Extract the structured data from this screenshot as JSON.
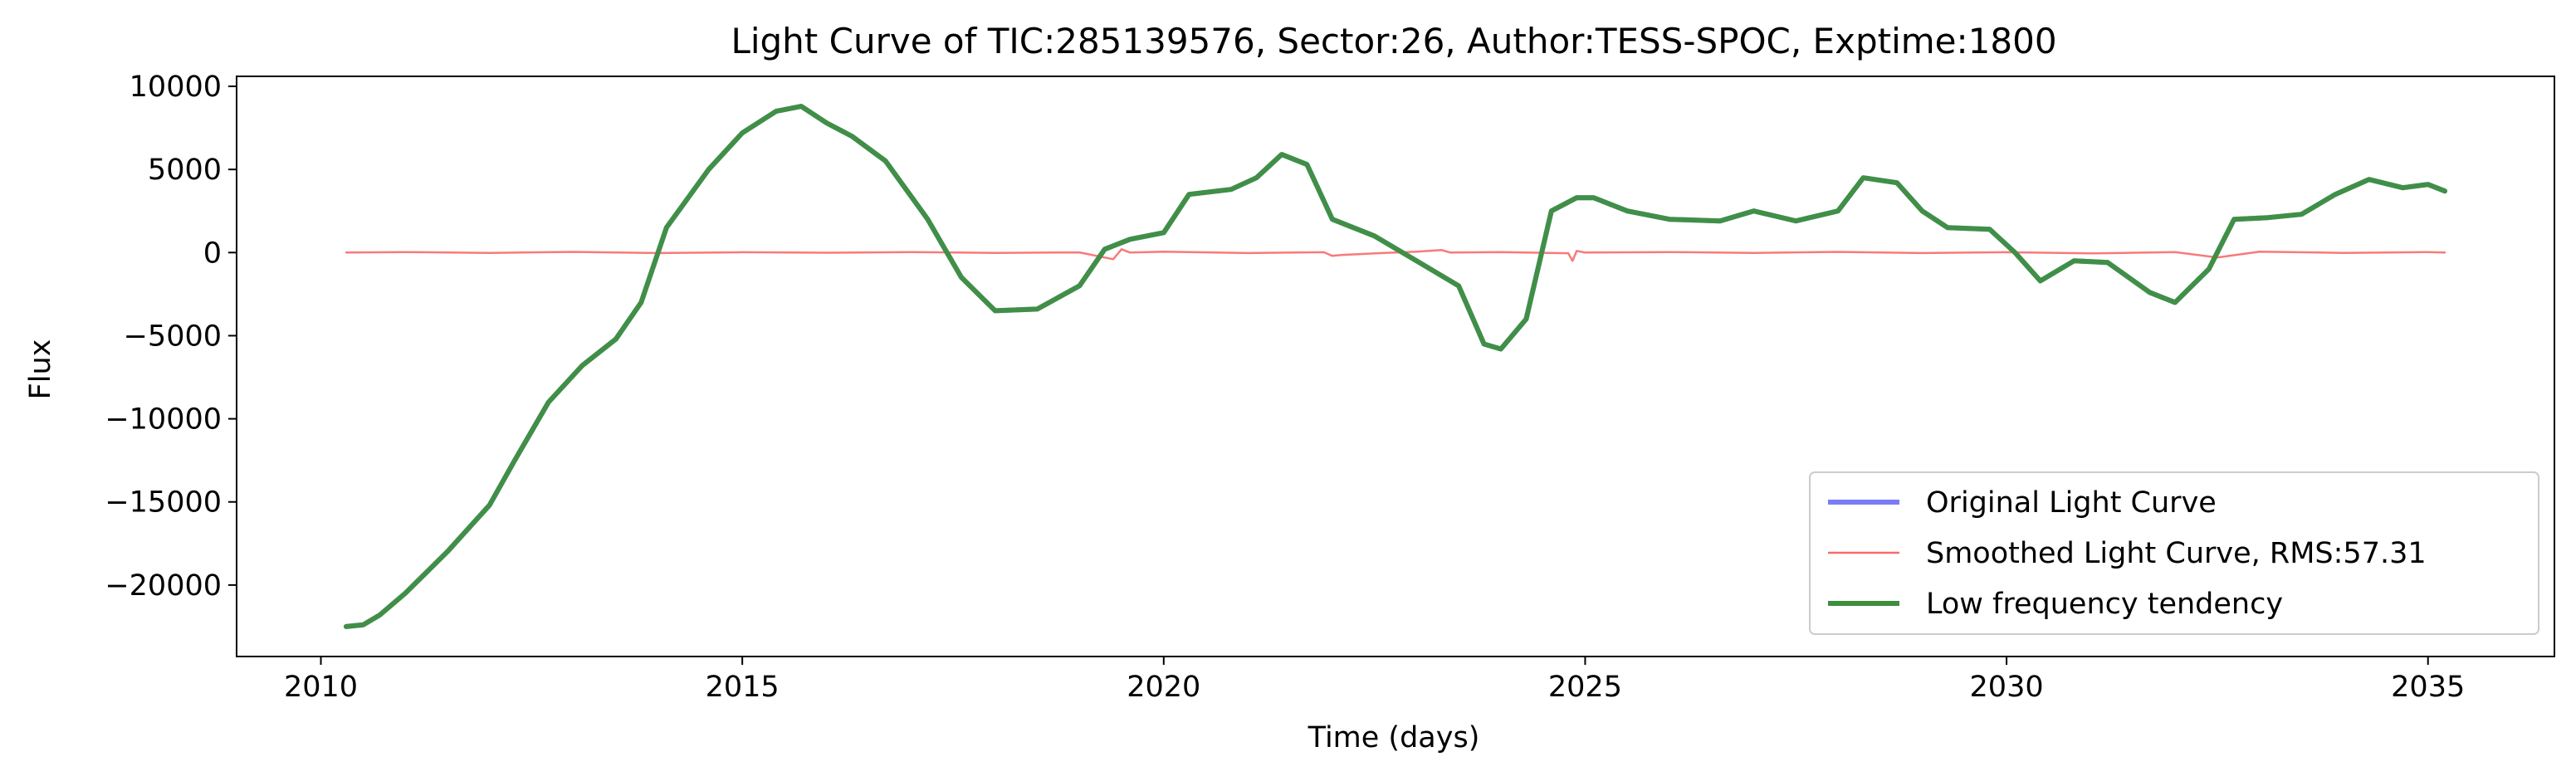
{
  "chart_data": {
    "type": "line",
    "title": "Light Curve of TIC:285139576, Sector:26, Author:TESS-SPOC, Exptime:1800",
    "xlabel": "Time (days)",
    "ylabel": "Flux",
    "xlim": [
      2009.0,
      2036.5
    ],
    "ylim": [
      -24300,
      10600
    ],
    "x_ticks": [
      2010,
      2015,
      2020,
      2025,
      2030,
      2035
    ],
    "x_tick_labels": [
      "2010",
      "2015",
      "2020",
      "2025",
      "2030",
      "2035"
    ],
    "y_ticks": [
      10000,
      5000,
      0,
      -5000,
      -10000,
      -15000,
      -20000
    ],
    "y_tick_labels": [
      "10000",
      "5000",
      "0",
      "−5000",
      "−10000",
      "−15000",
      "−20000"
    ],
    "grid": false,
    "legend_position": "bottom-right",
    "series": [
      {
        "name": "Original Light Curve",
        "color": "#7b7bf7",
        "x": [
          2010.3,
          2010.5,
          2010.7,
          2011.0,
          2011.5,
          2012.0,
          2012.3,
          2012.7,
          2013.1,
          2013.5,
          2013.8,
          2014.1,
          2014.6,
          2015.0,
          2015.4,
          2015.7,
          2016.0,
          2016.3,
          2016.7,
          2017.2,
          2017.6,
          2018.0,
          2018.5,
          2019.0,
          2019.3,
          2019.6,
          2020.0,
          2020.3,
          2020.8,
          2021.1,
          2021.4,
          2021.7,
          2022.0,
          2022.5,
          2023.0,
          2023.5,
          2023.8,
          2024.0,
          2024.3,
          2024.6,
          2024.9,
          2025.1,
          2025.5,
          2026.0,
          2026.6,
          2027.0,
          2027.5,
          2028.0,
          2028.3,
          2028.7,
          2029.0,
          2029.3,
          2029.8,
          2030.1,
          2030.4,
          2030.8,
          2031.2,
          2031.7,
          2032.0,
          2032.4,
          2032.7,
          2033.1,
          2033.5,
          2033.9,
          2034.3,
          2034.7,
          2035.0,
          2035.2
        ],
        "y": [
          -22500,
          -22400,
          -21800,
          -20500,
          -18000,
          -15200,
          -12500,
          -9000,
          -6800,
          -5200,
          -3000,
          1500,
          5000,
          7200,
          8500,
          8800,
          7800,
          7000,
          5500,
          2000,
          -1500,
          -3500,
          -3400,
          -2000,
          200,
          800,
          1200,
          3500,
          3800,
          4500,
          5900,
          5300,
          2000,
          1000,
          -500,
          -2000,
          -5500,
          -5800,
          -4000,
          2500,
          3300,
          3300,
          2500,
          2000,
          1900,
          2500,
          1900,
          2500,
          4500,
          4200,
          2500,
          1500,
          1400,
          0,
          -1700,
          -500,
          -600,
          -2400,
          -3000,
          -1000,
          2000,
          2100,
          2300,
          3500,
          4400,
          3900,
          4100,
          3700
        ]
      },
      {
        "name": "Smoothed Light Curve, RMS:57.31",
        "color": "#f76b6b",
        "x": [
          2010.3,
          2011.0,
          2012.0,
          2013.0,
          2014.0,
          2015.0,
          2016.0,
          2017.0,
          2018.0,
          2019.0,
          2019.4,
          2019.5,
          2019.6,
          2020.0,
          2021.0,
          2021.9,
          2022.0,
          2022.1,
          2022.5,
          2023.0,
          2023.3,
          2023.4,
          2024.0,
          2024.8,
          2024.85,
          2024.9,
          2025.0,
          2026.0,
          2027.0,
          2028.0,
          2029.0,
          2030.0,
          2031.0,
          2032.0,
          2032.5,
          2033.0,
          2034.0,
          2035.0,
          2035.2
        ],
        "y": [
          0,
          30,
          -20,
          40,
          -30,
          20,
          -10,
          30,
          -20,
          10,
          -400,
          200,
          0,
          50,
          -30,
          20,
          -200,
          -150,
          -50,
          50,
          150,
          0,
          30,
          -40,
          -500,
          100,
          0,
          30,
          -20,
          40,
          -30,
          20,
          -50,
          30,
          -300,
          50,
          -20,
          30,
          0
        ]
      },
      {
        "name": "Low frequency tendency",
        "color": "#3c8f3c",
        "x": [
          2010.3,
          2010.5,
          2010.7,
          2011.0,
          2011.5,
          2012.0,
          2012.3,
          2012.7,
          2013.1,
          2013.5,
          2013.8,
          2014.1,
          2014.6,
          2015.0,
          2015.4,
          2015.7,
          2016.0,
          2016.3,
          2016.7,
          2017.2,
          2017.6,
          2018.0,
          2018.5,
          2019.0,
          2019.3,
          2019.6,
          2020.0,
          2020.3,
          2020.8,
          2021.1,
          2021.4,
          2021.7,
          2022.0,
          2022.5,
          2023.0,
          2023.5,
          2023.8,
          2024.0,
          2024.3,
          2024.6,
          2024.9,
          2025.1,
          2025.5,
          2026.0,
          2026.6,
          2027.0,
          2027.5,
          2028.0,
          2028.3,
          2028.7,
          2029.0,
          2029.3,
          2029.8,
          2030.1,
          2030.4,
          2030.8,
          2031.2,
          2031.7,
          2032.0,
          2032.4,
          2032.7,
          2033.1,
          2033.5,
          2033.9,
          2034.3,
          2034.7,
          2035.0,
          2035.2
        ],
        "y": [
          -22500,
          -22400,
          -21800,
          -20500,
          -18000,
          -15200,
          -12500,
          -9000,
          -6800,
          -5200,
          -3000,
          1500,
          5000,
          7200,
          8500,
          8800,
          7800,
          7000,
          5500,
          2000,
          -1500,
          -3500,
          -3400,
          -2000,
          200,
          800,
          1200,
          3500,
          3800,
          4500,
          5900,
          5300,
          2000,
          1000,
          -500,
          -2000,
          -5500,
          -5800,
          -4000,
          2500,
          3300,
          3300,
          2500,
          2000,
          1900,
          2500,
          1900,
          2500,
          4500,
          4200,
          2500,
          1500,
          1400,
          0,
          -1700,
          -500,
          -600,
          -2400,
          -3000,
          -1000,
          2000,
          2100,
          2300,
          3500,
          4400,
          3900,
          4100,
          3700
        ]
      }
    ]
  }
}
